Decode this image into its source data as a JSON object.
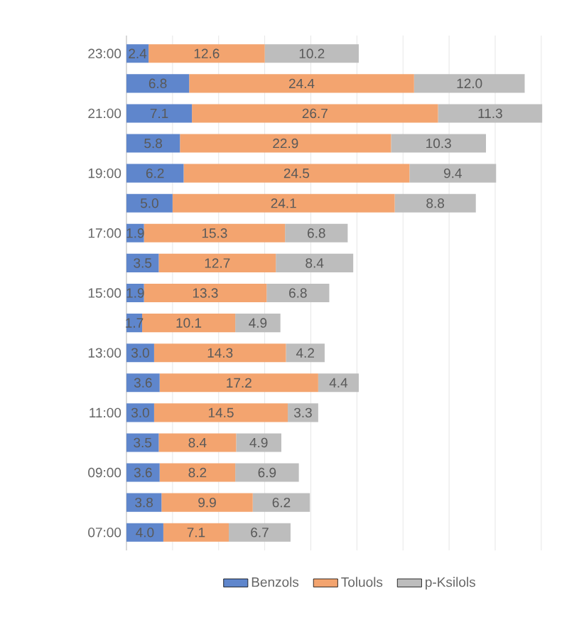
{
  "chart_data": {
    "type": "bar",
    "orientation": "horizontal",
    "stacked": true,
    "categories": [
      "23:00",
      null,
      "21:00",
      null,
      "19:00",
      null,
      "17:00",
      null,
      "15:00",
      null,
      "13:00",
      null,
      "11:00",
      null,
      "09:00",
      null,
      "07:00"
    ],
    "series": [
      {
        "name": "Benzols",
        "color": "#5f86cc",
        "values": [
          2.4,
          6.8,
          7.1,
          5.8,
          6.2,
          5.0,
          1.9,
          3.5,
          1.9,
          1.7,
          3.0,
          3.6,
          3.0,
          3.5,
          3.6,
          3.8,
          4.0
        ],
        "value_labels": [
          "2.4",
          "6.8",
          "7.1",
          "5.8",
          "6.2",
          "5.0",
          "1.9",
          "3.5",
          "1.9",
          "1.7",
          "3.0",
          "3.6",
          "3.0",
          "3.5",
          "3.6",
          "3.8",
          "4.0"
        ]
      },
      {
        "name": "Toluols",
        "color": "#f3a46f",
        "values": [
          12.6,
          24.4,
          26.7,
          22.9,
          24.5,
          24.1,
          15.3,
          12.7,
          13.3,
          10.1,
          14.3,
          17.2,
          14.5,
          8.4,
          8.2,
          9.9,
          7.1
        ],
        "value_labels": [
          "12.6",
          "24.4",
          "26.7",
          "22.9",
          "24.5",
          "24.1",
          "15.3",
          "12.7",
          "13.3",
          "10.1",
          "14.3",
          "17.2",
          "14.5",
          "8.4",
          "8.2",
          "9.9",
          "7.1"
        ]
      },
      {
        "name": "p-Ksilols",
        "color": "#bdbdbd",
        "values": [
          10.2,
          12.0,
          11.3,
          10.3,
          9.4,
          8.8,
          6.8,
          8.4,
          6.8,
          4.9,
          4.2,
          4.4,
          3.3,
          4.9,
          6.9,
          6.2,
          6.7
        ],
        "value_labels": [
          "10.2",
          "12.0",
          "11.3",
          "10.3",
          "9.4",
          "8.8",
          "6.8",
          "8.4",
          "6.8",
          "4.9",
          "4.2",
          "4.4",
          "3.3",
          "4.9",
          "6.9",
          "6.2",
          "6.7"
        ]
      }
    ],
    "grid": "x",
    "legend": "bottom",
    "tick_labels": "y"
  }
}
